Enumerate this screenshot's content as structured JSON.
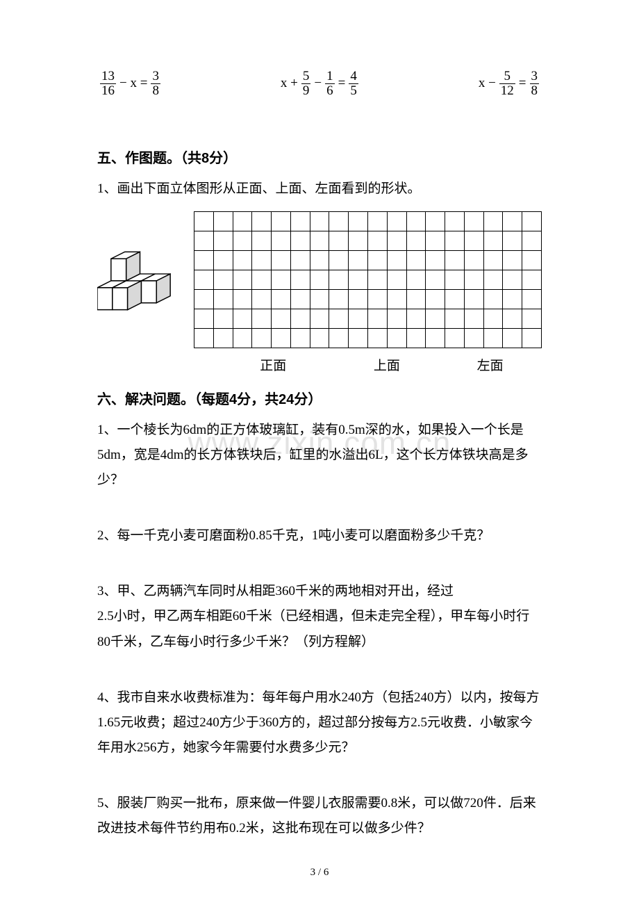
{
  "equations": {
    "e1": {
      "n1": "13",
      "d1": "16",
      "mid": "− x =",
      "n2": "3",
      "d2": "8"
    },
    "e2": {
      "pre": "x +",
      "n1": "5",
      "d1": "9",
      "mid1": "−",
      "n2": "1",
      "d2": "6",
      "mid2": "=",
      "n3": "4",
      "d3": "5"
    },
    "e3": {
      "pre": "x −",
      "n1": "5",
      "d1": "12",
      "mid": "=",
      "n2": "3",
      "d2": "8"
    }
  },
  "section5": {
    "title": "五、作图题。（共8分）",
    "q1": "1、画出下面立体图形从正面、上面、左面看到的形状。",
    "views": {
      "front": "正面",
      "top": "上面",
      "left": "左面"
    },
    "grid": {
      "rows": 7,
      "cols": 18
    }
  },
  "section6": {
    "title": "六、解决问题。（每题4分，共24分）",
    "q1": "1、一个棱长为6dm的正方体玻璃缸，装有0.5m深的水，如果投入一个长是5dm，宽是4dm的长方体铁块后，缸里的水溢出6L，这个长方体铁块高是多少？",
    "q2": "2、每一千克小麦可磨面粉0.85千克，1吨小麦可以磨面粉多少千克？",
    "q3a": "3、甲、乙两辆汽车同时从相距360千米的两地相对开出，经过",
    "q3b": "2.5小时，甲乙两车相距60千米（已经相遇，但未走完全程），甲车每小时行80千米，乙车每小时行多少千米？（列方程解）",
    "q4": "4、我市自来水收费标准为：每年每户用水240方（包括240方）以内，按每方1.65元收费；超过240方少于360方的，超过部分按每方2.5元收费．小敏家今年用水256方，她家今年需要付水费多少元？",
    "q5": "5、服装厂购买一批布，原来做一件婴儿衣服需要0.8米，可以做720件．后来改进技术每件节约用布0.2米，这批布现在可以做多少件？"
  },
  "watermark": "www.zixin.com.cn",
  "pagenum": "3 / 6"
}
